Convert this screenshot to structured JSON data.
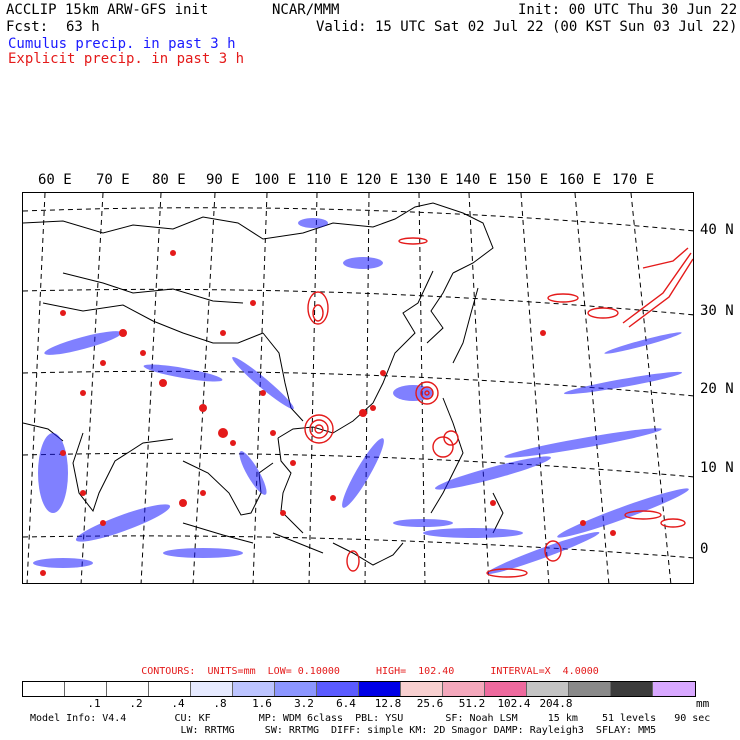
{
  "header": {
    "model_title": "ACCLIP 15km ARW-GFS init",
    "org": "NCAR/MMM",
    "init_label": "Init: 00 UTC Thu 30 Jun 22",
    "fcst_label": "Fcst:",
    "fcst_value": "63 h",
    "valid_label": "Valid: 15 UTC Sat 02 Jul 22 (00 KST Sun 03 Jul 22)",
    "legend_cumulus": "Cumulus precip. in past 3 h",
    "legend_explicit": "Explicit precip. in past 3 h"
  },
  "map": {
    "lon_labels": [
      "60 E",
      "70 E",
      "80 E",
      "90 E",
      "100 E",
      "110 E",
      "120 E",
      "130 E",
      "140 E",
      "150 E",
      "160 E",
      "170 E"
    ],
    "lat_labels": [
      "40 N",
      "30 N",
      "20 N",
      "10 N",
      "0"
    ],
    "cumulus_color": "#1a1aff",
    "explicit_color": "#e41a1a"
  },
  "contours": {
    "text": "CONTOURS:  UNITS=mm  LOW= 0.10000      HIGH=  102.40      INTERVAL=X  4.0000"
  },
  "scale": {
    "colors": [
      "#ffffff",
      "#ffffff",
      "#ffffff",
      "#ffffff",
      "#e6eaff",
      "#bcc4ff",
      "#8c96ff",
      "#5b5bff",
      "#0000e6",
      "#f8d0d0",
      "#f4a8bc",
      "#ee6a9e",
      "#c4c4c4",
      "#8a8a8a",
      "#3c3c3c",
      "#d8a8ff"
    ],
    "ticks": [
      ".1",
      ".2",
      ".4",
      ".8",
      "1.6",
      "3.2",
      "6.4",
      "12.8",
      "25.6",
      "51.2",
      "102.4",
      "204.8"
    ],
    "unit": "mm"
  },
  "model_info": {
    "line1": "Model Info: V4.4        CU: KF        MP: WDM 6class  PBL: YSU       SF: Noah LSM     15 km    51 levels   90 sec",
    "line2": "                         LW: RRTMG     SW: RRTMG  DIFF: simple KM: 2D Smagor DAMP: Rayleigh3  SFLAY: MM5"
  }
}
